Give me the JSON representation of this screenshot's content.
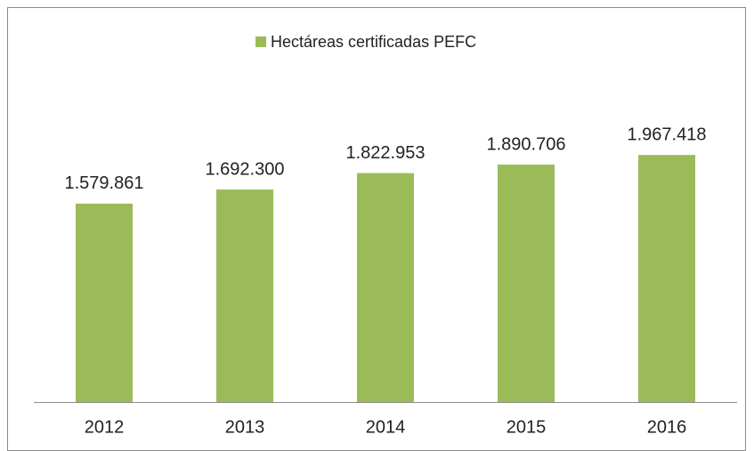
{
  "chart_data": {
    "type": "bar",
    "categories": [
      "2012",
      "2013",
      "2014",
      "2015",
      "2016"
    ],
    "series": [
      {
        "name": "Hectáreas certificadas PEFC",
        "color": "#9bbb59",
        "values": [
          1579861,
          1692300,
          1822953,
          1890706,
          1967418
        ],
        "value_labels": [
          "1.579.861",
          "1.692.300",
          "1.822.953",
          "1.890.706",
          "1.967.418"
        ]
      }
    ],
    "ylim": [
      0,
      2500000
    ],
    "legend": "top"
  }
}
